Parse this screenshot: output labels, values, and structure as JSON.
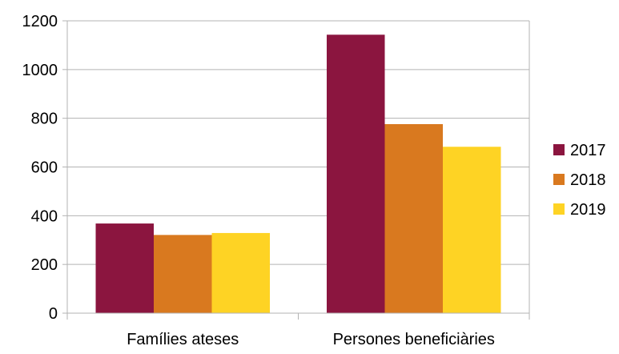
{
  "chart_data": {
    "type": "bar",
    "categories": [
      "Famílies ateses",
      "Persones beneficiàries"
    ],
    "series": [
      {
        "name": "2017",
        "values": [
          368,
          1143
        ],
        "color": "#8b153f"
      },
      {
        "name": "2018",
        "values": [
          321,
          776
        ],
        "color": "#d9791f"
      },
      {
        "name": "2019",
        "values": [
          329,
          683
        ],
        "color": "#fed324"
      }
    ],
    "ylim": [
      0,
      1200
    ],
    "yticks": [
      0,
      200,
      400,
      600,
      800,
      1000,
      1200
    ],
    "title": "",
    "xlabel": "",
    "ylabel": "",
    "grid": true,
    "legend_position": "right"
  }
}
